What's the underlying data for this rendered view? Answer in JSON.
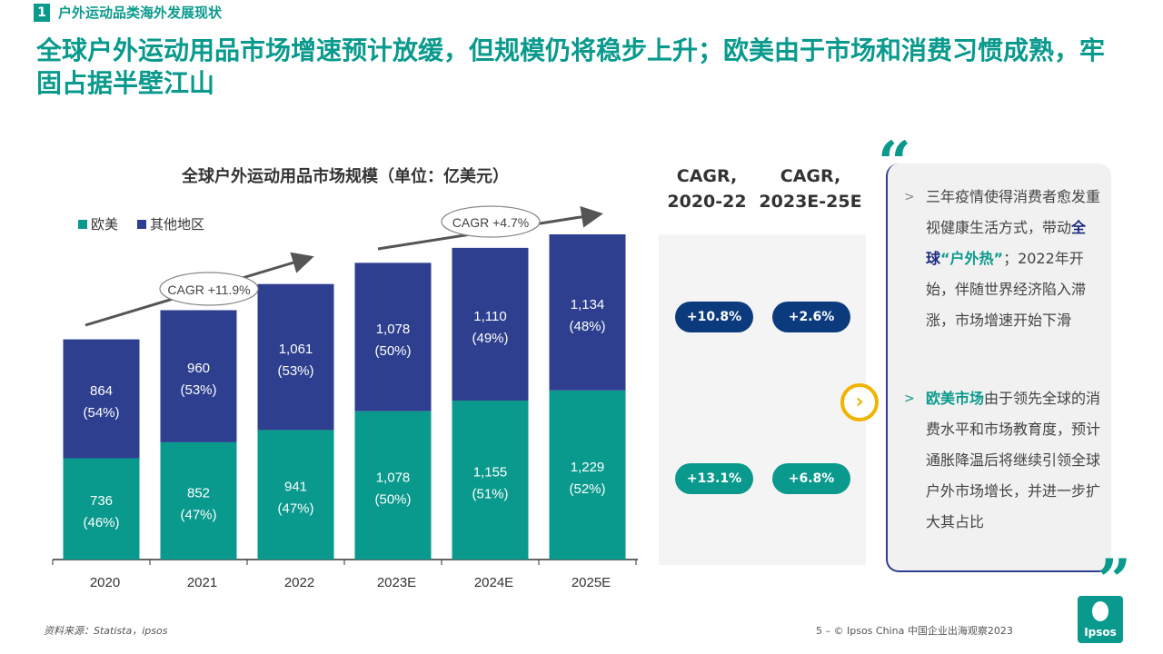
{
  "header": {
    "section_number": "1",
    "section_title": "户外运动品类海外发展现状",
    "headline": "全球户外运动用品市场增速预计放缓，但规模仍将稳步上升；欧美由于市场和消费习惯成熟，牢固占据半壁江山"
  },
  "chart_data": {
    "type": "bar",
    "stacked": true,
    "title": "全球户外运动用品市场规模（单位：亿美元）",
    "categories": [
      "2020",
      "2021",
      "2022",
      "2023E",
      "2024E",
      "2025E"
    ],
    "series": [
      {
        "name": "欧美",
        "color": "#0a9a8d",
        "values": [
          736,
          852,
          941,
          1078,
          1155,
          1229
        ],
        "shares": [
          "(46%)",
          "(47%)",
          "(47%)",
          "(50%)",
          "(51%)",
          "(52%)"
        ]
      },
      {
        "name": "其他地区",
        "color": "#2e3f8f",
        "values": [
          864,
          960,
          1061,
          1078,
          1110,
          1134
        ],
        "shares": [
          "(54%)",
          "(53%)",
          "(53%)",
          "(50%)",
          "(49%)",
          "(48%)"
        ]
      }
    ],
    "legend_position": "top-left",
    "annotations": [
      {
        "text": "CAGR +11.9%",
        "span": [
          "2020",
          "2022"
        ]
      },
      {
        "text": "CAGR +4.7%",
        "span": [
          "2023E",
          "2025E"
        ]
      }
    ]
  },
  "cagr": {
    "col1_header": "CAGR,\n2020-22",
    "col2_header": "CAGR,\n2023E-25E",
    "other_col1": "+10.8%",
    "other_col2": "+2.6%",
    "euam_col1": "+13.1%",
    "euam_col2": "+6.8%",
    "colors": {
      "other": "#0c3b7d",
      "euam": "#0a9a8d"
    }
  },
  "insights": {
    "b1_pre": "三年疫情使得消费者愈发重视健康生活方式，带动",
    "b1_hl1": "全球",
    "b1_hl2": "“户外热”",
    "b1_post": "；2022年开始，伴随世界经济陷入滞涨，市场增速开始下滑",
    "b2_hl": "欧美市场",
    "b2_post": "由于领先全球的消费水平和市场教育度，预计通胀降温后将继续引领全球户外市场增长，并进一步扩大其占比"
  },
  "footer": {
    "source": "资料来源：Statista，ipsos",
    "page": "5 – © Ipsos China 中国企业出海观察2023",
    "logo": "Ipsos"
  }
}
